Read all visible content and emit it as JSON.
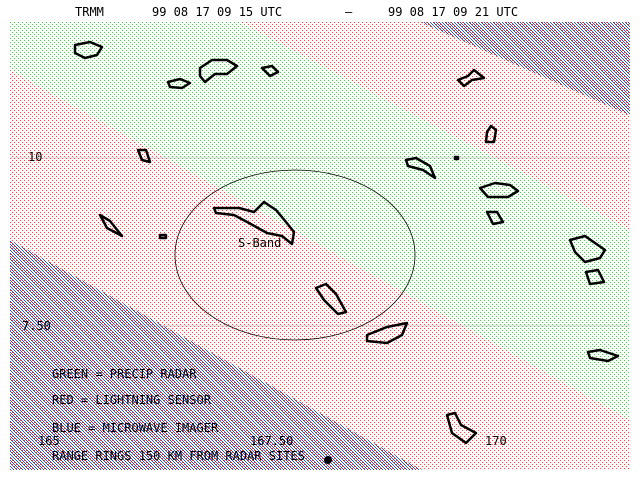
{
  "header": {
    "satellite": "TRMM",
    "start": "99 08 17 09 15 UTC",
    "separator": "—",
    "end": "99 08 17 09 21 UTC"
  },
  "latitude_labels": [
    "10",
    "7.50"
  ],
  "longitude_labels": [
    "165",
    "167.50",
    "170"
  ],
  "site_label": "S-Band",
  "legend": [
    "GREEN = PRECIP RADAR",
    "RED = LIGHTNING SENSOR",
    "BLUE = MICROWAVE IMAGER",
    "RANGE RINGS 150 KM FROM RADAR SITES"
  ]
}
